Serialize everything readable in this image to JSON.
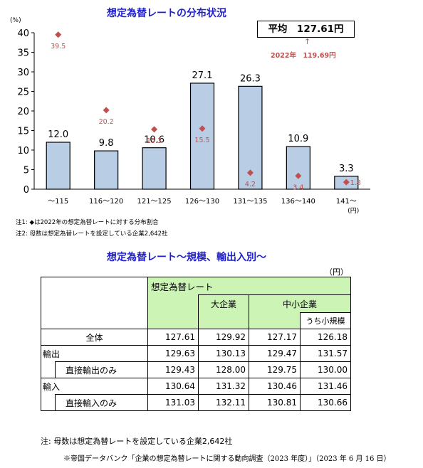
{
  "chart_data": {
    "type": "bar",
    "title": "想定為替レートの分布状況",
    "y_unit": "(%)",
    "x_unit": "(円)",
    "ylim": [
      0,
      40
    ],
    "yticks": [
      0,
      5,
      10,
      15,
      20,
      25,
      30,
      35,
      40
    ],
    "categories": [
      "〜115",
      "116〜120",
      "121〜125",
      "126〜130",
      "131〜135",
      "136〜140",
      "141〜"
    ],
    "series": [
      {
        "type": "bar",
        "values": [
          12.0,
          9.8,
          10.6,
          27.1,
          26.3,
          10.9,
          3.3
        ],
        "color": "#b9cde5"
      },
      {
        "type": "marker",
        "values": [
          39.5,
          20.2,
          15.3,
          15.5,
          4.2,
          3.4,
          1.8
        ],
        "color": "#c0504d"
      }
    ],
    "average_box": "平均　127.61円",
    "annotation_2022": "2022年　119.69円",
    "notes": [
      "注1: ◆は2022年の想定為替レートに対する分布割合",
      "注2: 母数は想定為替レートを設定している企業2,642社"
    ]
  },
  "table": {
    "title": "想定為替レート〜規模、輸出入別〜",
    "unit": "（円）",
    "header_main": "想定為替レート",
    "header_large": "大企業",
    "header_sme": "中小企業",
    "header_small": "うち小規模",
    "rows": [
      {
        "label": "全体",
        "values": [
          "127.61",
          "129.92",
          "127.17",
          "126.18"
        ]
      },
      {
        "label": "輸出",
        "values": [
          "129.63",
          "130.13",
          "129.47",
          "131.57"
        ]
      },
      {
        "label": "直接輸出のみ",
        "values": [
          "129.43",
          "128.00",
          "129.75",
          "130.00"
        ]
      },
      {
        "label": "輸入",
        "values": [
          "130.64",
          "131.32",
          "130.46",
          "131.46"
        ]
      },
      {
        "label": "直接輸入のみ",
        "values": [
          "131.03",
          "132.11",
          "130.81",
          "130.66"
        ]
      }
    ],
    "footnote": "注: 母数は想定為替レートを設定している企業2,642社",
    "source": "※帝国データバンク「企業の想定為替レートに関する動向調査（2023 年度）」（2023 年 6 月 16 日）"
  }
}
